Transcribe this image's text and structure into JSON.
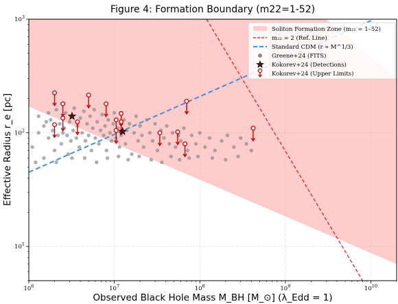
{
  "chart_data": {
    "type": "scatter",
    "title": "Figure 4: Formation Boundary (m22=1-52)",
    "xlabel": "Observed Black Hole Mass M_BH [M_⊙] (λ_Edd = 1)",
    "ylabel": "Effective Radius r_e [pc]",
    "xscale": "log",
    "yscale": "log",
    "xlim": [
      1000000,
      20000000000
    ],
    "ylim": [
      5,
      1000
    ],
    "x_tick_labels": [
      "10^6",
      "10^7",
      "10^8",
      "10^9",
      "10^10"
    ],
    "y_tick_labels": [
      "10^1",
      "10^2",
      "10^3"
    ],
    "grid": true,
    "legend_position": "top-right",
    "colors": {
      "zone": "#ffcccc",
      "ref_line": "#e03030",
      "cdm_line": "#3f8fe0",
      "greene": "#8c8c8c",
      "kokorev": "#cc0000",
      "detection_face": "#5a1616"
    },
    "legend": [
      {
        "label": "Soliton Formation Zone (m₂₂ = 1–52)",
        "symbol": "zone"
      },
      {
        "label": "m₂₂ = 2 (Ref. Line)",
        "symbol": "ref_line"
      },
      {
        "label": "Standard CDM (r ∝ M^1/3)",
        "symbol": "cdm_line"
      },
      {
        "label": "Greene+24 (FITS)",
        "symbol": "greene"
      },
      {
        "label": "Kokorev+24 (Detections)",
        "symbol": "star"
      },
      {
        "label": "Kokorev+24 (Upper Limits)",
        "symbol": "upper_limit"
      }
    ],
    "soliton_zone": {
      "upper": [
        [
          1000000,
          1000
        ],
        [
          3000000000,
          1000
        ],
        [
          20000000000,
          300
        ]
      ],
      "lower": [
        [
          1000000,
          170
        ],
        [
          20000000000,
          7
        ]
      ]
    },
    "ref_line_points": [
      [
        120000000,
        1000
      ],
      [
        8000000000,
        5
      ]
    ],
    "cdm_line_points": [
      [
        1000000,
        45
      ],
      [
        10000000000,
        970
      ]
    ],
    "detections": [
      [
        3200000,
        140
      ],
      [
        12500000,
        103
      ]
    ],
    "upper_limits": [
      [
        2000000,
        225
      ],
      [
        2000000,
        118
      ],
      [
        2500000,
        180
      ],
      [
        2500000,
        135
      ],
      [
        3700000,
        125
      ],
      [
        5000000,
        215
      ],
      [
        8000000,
        180
      ],
      [
        10500000,
        130
      ],
      [
        10500000,
        105
      ],
      [
        12000000,
        148
      ],
      [
        12000000,
        125
      ],
      [
        34000000,
        100
      ],
      [
        55000000,
        102
      ],
      [
        67000000,
        80
      ],
      [
        70000000,
        190
      ],
      [
        420000000,
        110
      ]
    ],
    "greene": [
      [
        1100000,
        75
      ],
      [
        1300000,
        100
      ],
      [
        1300000,
        140
      ],
      [
        1500000,
        115
      ],
      [
        1500000,
        60
      ],
      [
        1700000,
        150
      ],
      [
        1700000,
        90
      ],
      [
        1800000,
        130
      ],
      [
        1900000,
        105
      ],
      [
        2000000,
        70
      ],
      [
        2100000,
        160
      ],
      [
        2200000,
        95
      ],
      [
        2300000,
        120
      ],
      [
        2400000,
        80
      ],
      [
        2600000,
        110
      ],
      [
        2700000,
        150
      ],
      [
        2800000,
        95
      ],
      [
        2900000,
        65
      ],
      [
        3000000,
        125
      ],
      [
        3100000,
        85
      ],
      [
        3300000,
        105
      ],
      [
        3400000,
        165
      ],
      [
        3600000,
        90
      ],
      [
        3700000,
        115
      ],
      [
        3900000,
        75
      ],
      [
        4000000,
        135
      ],
      [
        4200000,
        100
      ],
      [
        4400000,
        155
      ],
      [
        4600000,
        85
      ],
      [
        4800000,
        120
      ],
      [
        5000000,
        95
      ],
      [
        5200000,
        140
      ],
      [
        5400000,
        70
      ],
      [
        5600000,
        110
      ],
      [
        5800000,
        160
      ],
      [
        6000000,
        90
      ],
      [
        6300000,
        125
      ],
      [
        6600000,
        80
      ],
      [
        6900000,
        105
      ],
      [
        7200000,
        145
      ],
      [
        7500000,
        95
      ],
      [
        7800000,
        115
      ],
      [
        8100000,
        70
      ],
      [
        8500000,
        130
      ],
      [
        8900000,
        100
      ],
      [
        9300000,
        85
      ],
      [
        9700000,
        120
      ],
      [
        10000000,
        150
      ],
      [
        10500000,
        90
      ],
      [
        11000000,
        110
      ],
      [
        11500000,
        75
      ],
      [
        12000000,
        95
      ],
      [
        13000000,
        130
      ],
      [
        13500000,
        80
      ],
      [
        14000000,
        105
      ],
      [
        15000000,
        120
      ],
      [
        16000000,
        65
      ],
      [
        17000000,
        100
      ],
      [
        18000000,
        140
      ],
      [
        19000000,
        85
      ],
      [
        20000000,
        115
      ],
      [
        21000000,
        95
      ],
      [
        22000000,
        75
      ],
      [
        24000000,
        130
      ],
      [
        26000000,
        100
      ],
      [
        28000000,
        85
      ],
      [
        30000000,
        120
      ],
      [
        32000000,
        70
      ],
      [
        35000000,
        105
      ],
      [
        38000000,
        90
      ],
      [
        41000000,
        115
      ],
      [
        44000000,
        80
      ],
      [
        48000000,
        100
      ],
      [
        52000000,
        75
      ],
      [
        56000000,
        95
      ],
      [
        60000000,
        85
      ],
      [
        65000000,
        110
      ],
      [
        72000000,
        70
      ],
      [
        80000000,
        95
      ],
      [
        90000000,
        80
      ],
      [
        100000000,
        100
      ],
      [
        115000000,
        75
      ],
      [
        130000000,
        90
      ],
      [
        150000000,
        70
      ],
      [
        180000000,
        85
      ],
      [
        210000000,
        95
      ],
      [
        250000000,
        75
      ],
      [
        300000000,
        90
      ],
      [
        350000000,
        80
      ],
      [
        400000000,
        70
      ],
      [
        1200000,
        55
      ],
      [
        1600000,
        125
      ],
      [
        2100000,
        55
      ],
      [
        2500000,
        100
      ],
      [
        3200000,
        60
      ],
      [
        4500000,
        60
      ],
      [
        6200000,
        55
      ],
      [
        8300000,
        60
      ],
      [
        11200000,
        62
      ],
      [
        14500000,
        58
      ],
      [
        19500000,
        62
      ],
      [
        27000000,
        58
      ],
      [
        36000000,
        55
      ],
      [
        46000000,
        62
      ],
      [
        58000000,
        58
      ],
      [
        75000000,
        60
      ],
      [
        95000000,
        62
      ],
      [
        140000000,
        60
      ],
      [
        200000000,
        58
      ],
      [
        280000000,
        62
      ]
    ]
  }
}
